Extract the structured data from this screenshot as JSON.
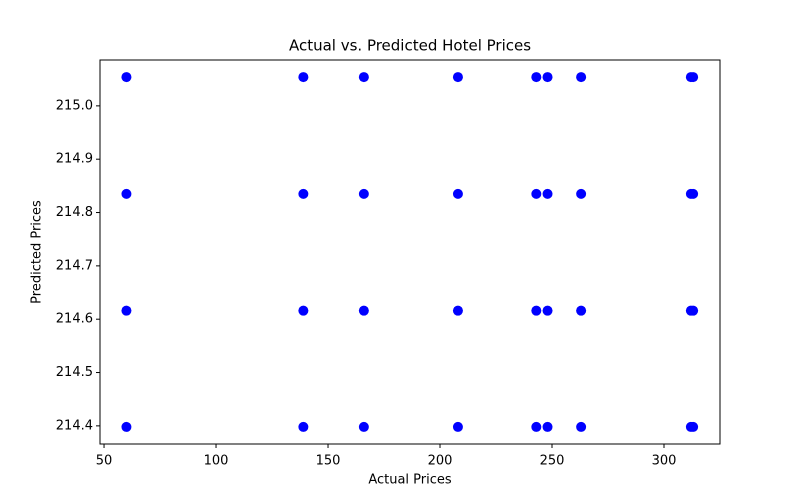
{
  "chart_data": {
    "type": "scatter",
    "title": "Actual vs. Predicted Hotel Prices",
    "x_label": "Actual Prices",
    "y_label": "Predicted Prices",
    "series": [
      {
        "color": "#0000ff",
        "x": [
          60,
          139,
          166,
          208,
          243,
          248,
          263,
          312,
          313,
          60,
          139,
          166,
          208,
          243,
          248,
          263,
          312,
          313,
          60,
          139,
          166,
          208,
          243,
          248,
          263,
          312,
          313,
          60,
          139,
          166,
          208,
          243,
          248,
          263,
          312,
          313
        ],
        "values": [
          215.054,
          215.054,
          215.054,
          215.054,
          215.054,
          215.054,
          215.054,
          215.054,
          215.054,
          214.835,
          214.835,
          214.835,
          214.835,
          214.835,
          214.835,
          214.835,
          214.835,
          214.835,
          214.616,
          214.616,
          214.616,
          214.616,
          214.616,
          214.616,
          214.616,
          214.616,
          214.616,
          214.398,
          214.398,
          214.398,
          214.398,
          214.398,
          214.398,
          214.398,
          214.398,
          214.398
        ]
      }
    ],
    "xlim": [
      48.2,
      325
    ],
    "xticks": [
      50,
      100,
      150,
      200,
      250,
      300
    ],
    "ylim": [
      214.366,
      215.086
    ],
    "yticks": [
      214.4,
      214.5,
      214.6,
      214.7,
      214.8,
      214.9,
      {
        "value": 215.0,
        "label": "215.0"
      }
    ]
  }
}
